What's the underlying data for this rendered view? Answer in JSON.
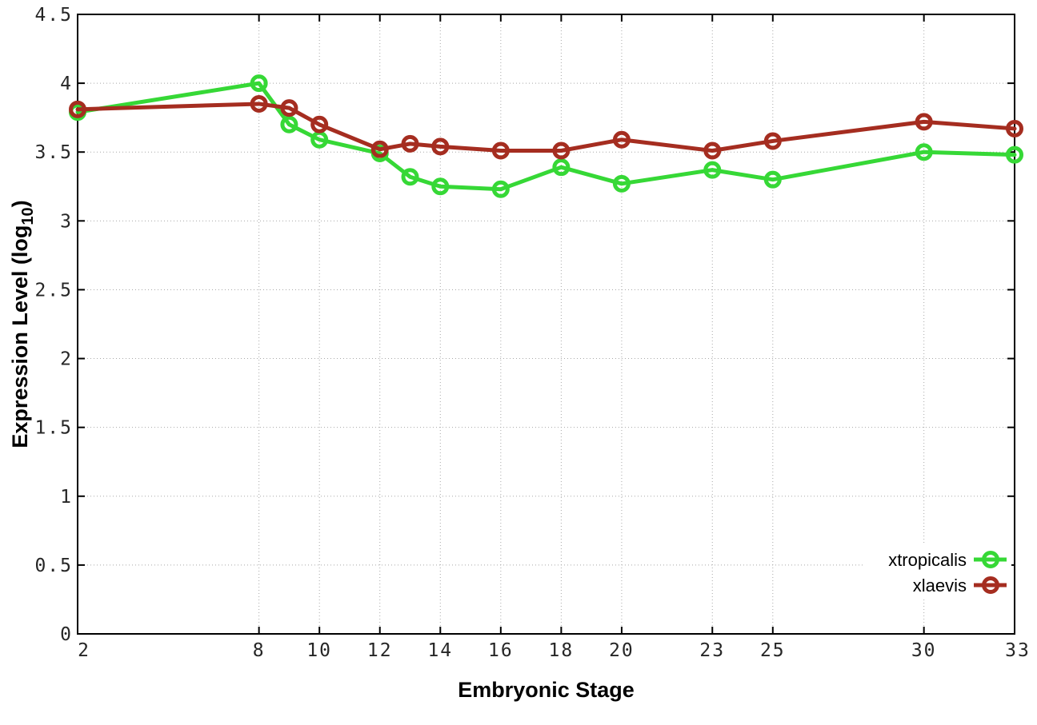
{
  "chart_data": {
    "type": "line",
    "x": [
      2,
      8,
      9,
      10,
      12,
      13,
      14,
      16,
      18,
      20,
      23,
      25,
      30,
      33
    ],
    "series": [
      {
        "name": "xtropicalis",
        "color": "#36d836",
        "values": [
          3.79,
          4.0,
          3.7,
          3.59,
          3.49,
          3.32,
          3.25,
          3.23,
          3.39,
          3.27,
          3.37,
          3.3,
          3.5,
          3.48
        ]
      },
      {
        "name": "xlaevis",
        "color": "#a52d20",
        "values": [
          3.81,
          3.85,
          3.82,
          3.7,
          3.52,
          3.56,
          3.54,
          3.51,
          3.51,
          3.59,
          3.51,
          3.58,
          3.72,
          3.67
        ]
      }
    ],
    "xlabel": "Embryonic Stage",
    "ylabel": {
      "main": "Expression Level (log",
      "sub": "10",
      "end": ")"
    },
    "x_ticks": [
      "2",
      "8",
      "10",
      "12",
      "14",
      "16",
      "18",
      "20",
      "23",
      "25",
      "30",
      "33"
    ],
    "y_ticks": [
      "0",
      "0.5",
      "1",
      "1.5",
      "2",
      "2.5",
      "3",
      "3.5",
      "4",
      "4.5"
    ],
    "xlim": [
      2,
      33
    ],
    "ylim": [
      0,
      4.5
    ],
    "grid": "dotted",
    "grid_color": "#a8a8a8",
    "axis_color": "#000000",
    "background": "#ffffff",
    "legend_position": "bottom-right",
    "marker": "open-circle"
  }
}
